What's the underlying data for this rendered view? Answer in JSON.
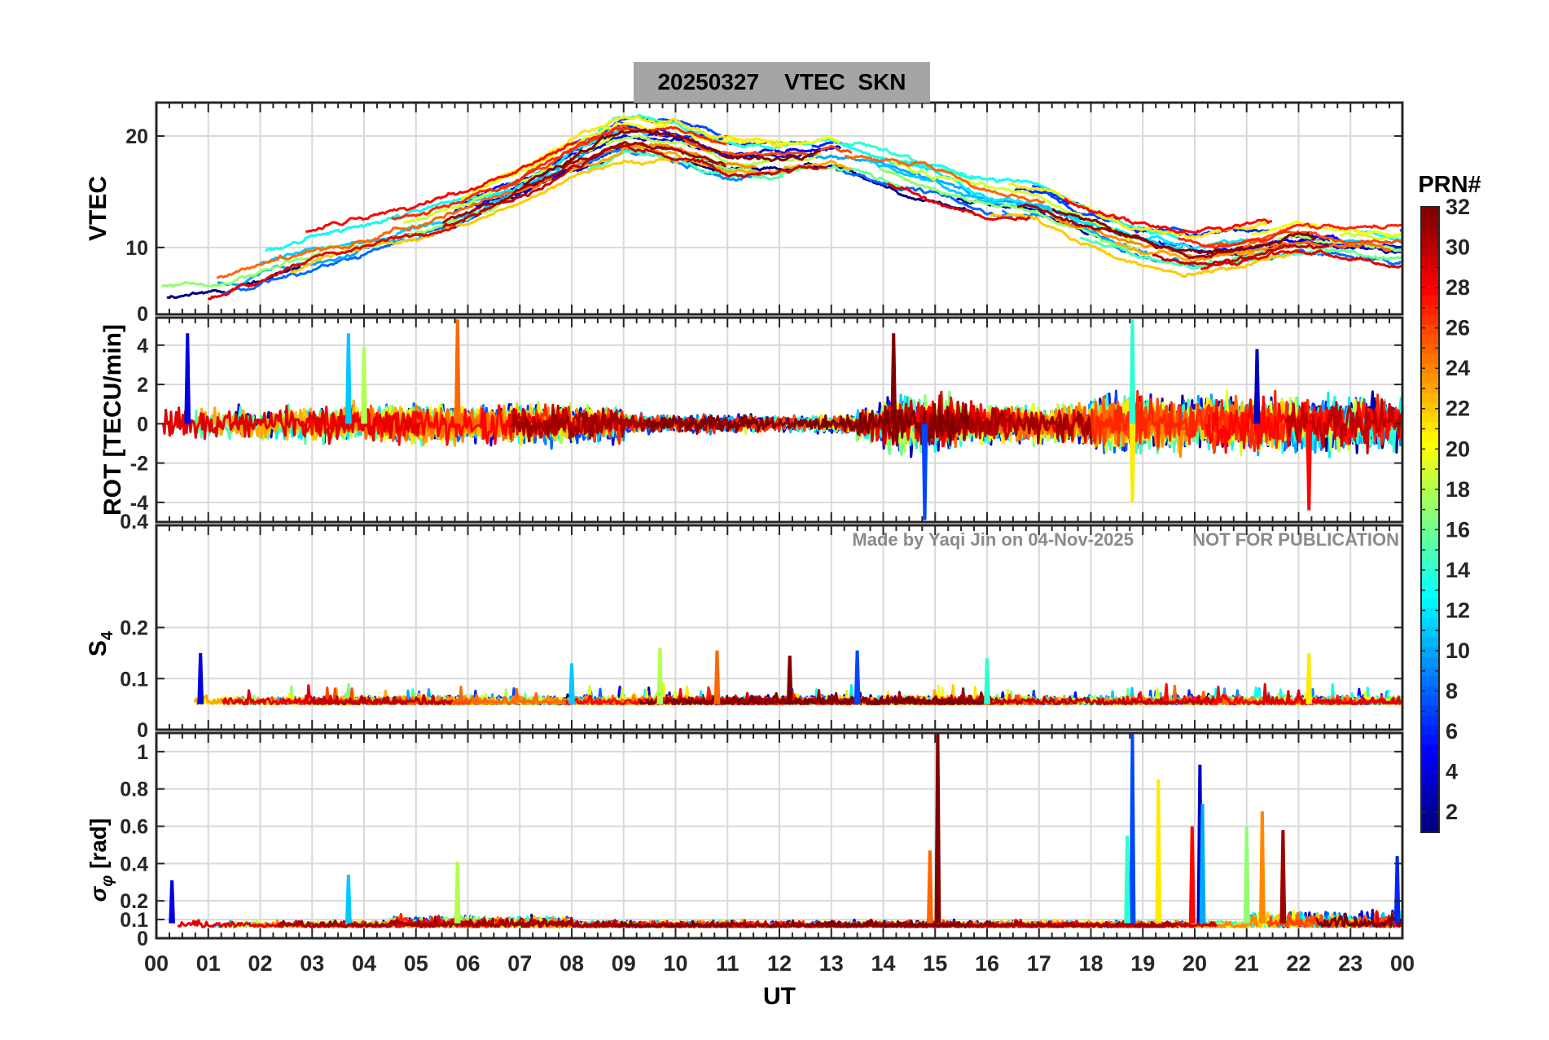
{
  "title": "20250327    VTEC  SKN",
  "watermark_credit": "Made by Yaqi Jin on 04-Nov-2025",
  "watermark_notice": "NOT FOR PUBLICATION",
  "colorbar": {
    "label": "PRN#",
    "colormap": "jet",
    "range": [
      1,
      32
    ],
    "ticks": [
      "2",
      "4",
      "6",
      "8",
      "10",
      "12",
      "14",
      "16",
      "18",
      "20",
      "22",
      "24",
      "26",
      "28",
      "30",
      "32"
    ]
  },
  "chart_data": [
    {
      "type": "line",
      "id": "vtec",
      "ylabel": "VTEC",
      "ylim": [
        4,
        23
      ],
      "yticks": [
        10,
        20
      ],
      "ytick_labels": [
        "10",
        "20"
      ],
      "series_count": 32,
      "grid": true,
      "trend": {
        "x_hours": [
          0,
          1,
          2,
          3,
          4,
          5,
          6,
          7,
          8,
          9,
          10,
          11,
          12,
          13,
          14,
          15,
          16,
          17,
          18,
          19,
          20,
          21,
          22,
          23,
          24
        ],
        "y": [
          7,
          7,
          8.5,
          10,
          11,
          12,
          13.5,
          15.5,
          18,
          20,
          19.5,
          18,
          18,
          18.5,
          17.5,
          16,
          14.5,
          14,
          12,
          10.5,
          9.5,
          10,
          11,
          10.5,
          10
        ]
      }
    },
    {
      "type": "line",
      "id": "rot",
      "ylabel": "ROT [TECU/min]",
      "ylim": [
        -5,
        5.4
      ],
      "yticks": [
        -4,
        -2,
        0,
        2,
        4
      ],
      "ytick_labels": [
        "-4",
        "-2",
        "0",
        "2",
        "4"
      ],
      "top_tick_label": "0",
      "series_count": 32,
      "grid": true,
      "spikes": [
        {
          "x": 0.6,
          "y": 4.6
        },
        {
          "x": 3.7,
          "y": 4.6
        },
        {
          "x": 4.0,
          "y": 3.9
        },
        {
          "x": 5.8,
          "y": 5.3
        },
        {
          "x": 14.2,
          "y": 4.6
        },
        {
          "x": 14.8,
          "y": -4.9
        },
        {
          "x": 18.8,
          "y": 5.3
        },
        {
          "x": 18.8,
          "y": -4.0
        },
        {
          "x": 22.2,
          "y": -4.4
        },
        {
          "x": 21.2,
          "y": 3.8
        }
      ]
    },
    {
      "type": "line",
      "id": "s4",
      "ylabel": "S4",
      "ylim": [
        0,
        0.4
      ],
      "yticks": [
        0,
        0.1,
        0.2
      ],
      "ytick_labels": [
        "0",
        "0.1",
        "0.2"
      ],
      "top_tick_label": "0.4",
      "series_count": 32,
      "grid": true,
      "baseline": 0.05,
      "spikes": [
        {
          "x": 0.85,
          "y": 0.15
        },
        {
          "x": 8.0,
          "y": 0.13
        },
        {
          "x": 9.7,
          "y": 0.16
        },
        {
          "x": 10.8,
          "y": 0.155
        },
        {
          "x": 12.2,
          "y": 0.145
        },
        {
          "x": 13.5,
          "y": 0.155
        },
        {
          "x": 16.0,
          "y": 0.14
        },
        {
          "x": 22.2,
          "y": 0.15
        }
      ]
    },
    {
      "type": "line",
      "id": "sigma_phi",
      "ylabel": "σφ [rad]",
      "ylim": [
        0,
        1.1
      ],
      "yticks": [
        0,
        0.1,
        0.2,
        0.4,
        0.6,
        0.8,
        1
      ],
      "ytick_labels": [
        "0",
        "0.1",
        "0.2",
        "0.4",
        "0.6",
        "0.8",
        "1"
      ],
      "series_count": 32,
      "grid": true,
      "spikes": [
        {
          "x": 0.3,
          "y": 0.31
        },
        {
          "x": 3.7,
          "y": 0.34
        },
        {
          "x": 5.8,
          "y": 0.41
        },
        {
          "x": 14.9,
          "y": 0.47
        },
        {
          "x": 15.05,
          "y": 1.1
        },
        {
          "x": 18.8,
          "y": 1.1
        },
        {
          "x": 18.7,
          "y": 0.55
        },
        {
          "x": 19.3,
          "y": 0.85
        },
        {
          "x": 19.95,
          "y": 0.6
        },
        {
          "x": 20.1,
          "y": 0.93
        },
        {
          "x": 20.15,
          "y": 0.72
        },
        {
          "x": 21.0,
          "y": 0.6
        },
        {
          "x": 21.3,
          "y": 0.68
        },
        {
          "x": 21.7,
          "y": 0.58
        },
        {
          "x": 23.9,
          "y": 0.44
        }
      ]
    }
  ],
  "x_axis": {
    "label": "UT",
    "range_hours": [
      0,
      24
    ],
    "tick_labels": [
      "00",
      "01",
      "02",
      "03",
      "04",
      "05",
      "06",
      "07",
      "08",
      "09",
      "10",
      "11",
      "12",
      "13",
      "14",
      "15",
      "16",
      "17",
      "18",
      "19",
      "20",
      "21",
      "22",
      "23",
      "00"
    ]
  }
}
